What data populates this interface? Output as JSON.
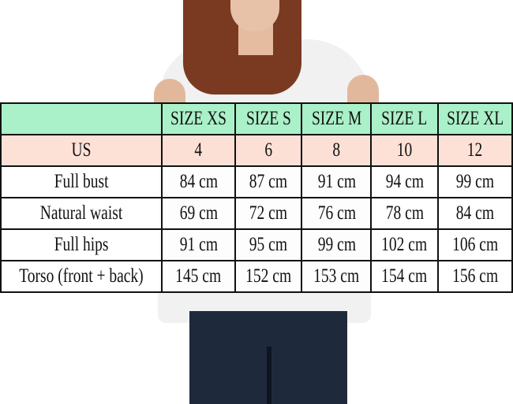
{
  "table": {
    "header": [
      "",
      "SIZE XS",
      "SIZE S",
      "SIZE M",
      "SIZE L",
      "SIZE XL"
    ],
    "rows": [
      {
        "label": "US",
        "values": [
          "4",
          "6",
          "8",
          "10",
          "12"
        ]
      },
      {
        "label": "Full bust",
        "values": [
          "84 cm",
          "87 cm",
          "91 cm",
          "94 cm",
          "99 cm"
        ]
      },
      {
        "label": "Natural waist",
        "values": [
          "69 cm",
          "72 cm",
          "76 cm",
          "78 cm",
          "84 cm"
        ]
      },
      {
        "label": "Full hips",
        "values": [
          "91 cm",
          "95 cm",
          "99 cm",
          "102 cm",
          "106 cm"
        ]
      },
      {
        "label": "Torso (front + back)",
        "values": [
          "145 cm",
          "152 cm",
          "153 cm",
          "154 cm",
          "156 cm"
        ]
      }
    ]
  },
  "colors": {
    "header": "#aaf0c8",
    "us_row": "#fde0d2"
  }
}
